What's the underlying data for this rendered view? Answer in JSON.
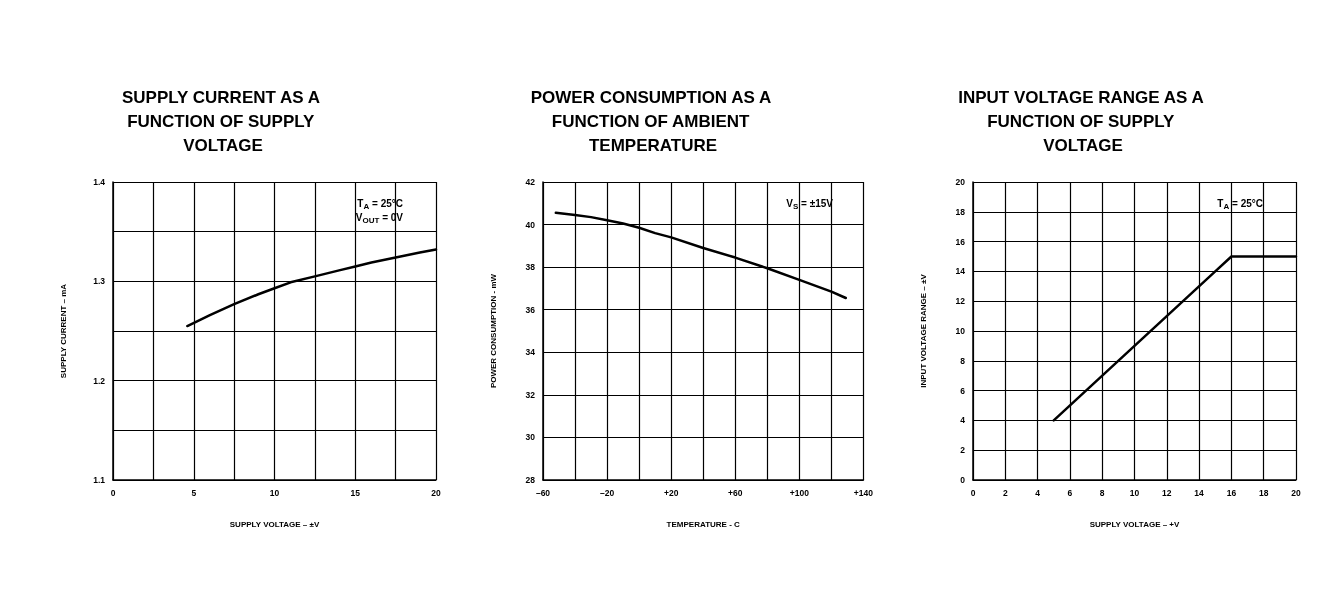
{
  "chart_data": [
    {
      "type": "line",
      "title": "SUPPLY CURRENT AS A FUNCTION OF SUPPLY VOLTAGE",
      "xlabel": "SUPPLY VOLTAGE – ±V",
      "ylabel": "SUPPLY CURRENT – mA",
      "annotations": [
        "T$_{A}$ = 25°C",
        "V$_{OUT}$ = 0V"
      ],
      "xlim": [
        0,
        20
      ],
      "xticks": [
        0,
        {
          "value": 2.5,
          "label": null
        },
        5,
        {
          "value": 7.5,
          "label": null
        },
        10,
        {
          "value": 12.5,
          "label": null
        },
        15,
        {
          "value": 17.5,
          "label": null
        },
        20
      ],
      "ylim": [
        1.1,
        1.4
      ],
      "yticks": [
        1.1,
        {
          "value": 1.15,
          "label": null
        },
        1.2,
        {
          "value": 1.25,
          "label": null
        },
        1.3,
        {
          "value": 1.35,
          "label": null
        },
        1.4
      ],
      "grid": true,
      "marker": "none",
      "line_style": "solid",
      "series": [
        {
          "color": "#000000",
          "x": [
            4.6,
            6,
            7.5,
            9,
            10,
            11,
            12.5,
            14,
            15,
            16,
            17.5,
            19,
            20
          ],
          "values": [
            1.255,
            1.266,
            1.277,
            1.287,
            1.293,
            1.299,
            1.305,
            1.311,
            1.315,
            1.319,
            1.324,
            1.329,
            1.332
          ]
        }
      ]
    },
    {
      "type": "line",
      "title": "POWER CONSUMPTION AS A FUNCTION OF AMBIENT TEMPERATURE",
      "xlabel": "TEMPERATURE - C",
      "ylabel": "POWER CONSUMPTION - mW",
      "annotations": [
        "V$_{S}$ = ±15V"
      ],
      "xlim": [
        -60,
        140
      ],
      "xticks": [
        {
          "value": -60,
          "label": "–60"
        },
        {
          "value": -40,
          "label": null
        },
        {
          "value": -20,
          "label": "–20"
        },
        {
          "value": 0,
          "label": null
        },
        {
          "value": 20,
          "label": "+20"
        },
        {
          "value": 40,
          "label": null
        },
        {
          "value": 60,
          "label": "+60"
        },
        {
          "value": 80,
          "label": null
        },
        {
          "value": 100,
          "label": "+100"
        },
        {
          "value": 120,
          "label": null
        },
        {
          "value": 140,
          "label": "+140"
        }
      ],
      "ylim": [
        28,
        42
      ],
      "yticks": [
        28,
        30,
        32,
        34,
        36,
        38,
        40,
        42
      ],
      "grid": true,
      "marker": "none",
      "line_style": "solid",
      "series": [
        {
          "color": "#000000",
          "x": [
            -52,
            -40,
            -30,
            -20,
            -10,
            0,
            10,
            20,
            40,
            60,
            80,
            100,
            120,
            129
          ],
          "values": [
            40.55,
            40.45,
            40.35,
            40.2,
            40.05,
            39.85,
            39.6,
            39.4,
            38.9,
            38.45,
            37.95,
            37.4,
            36.85,
            36.55
          ]
        }
      ]
    },
    {
      "type": "line",
      "title": "INPUT VOLTAGE RANGE AS A FUNCTION OF SUPPLY VOLTAGE",
      "xlabel": "SUPPLY VOLTAGE – +V",
      "ylabel": "INPUT VOLTAGE RANGE – ±V",
      "annotations": [
        "T$_{A}$ = 25°C"
      ],
      "xlim": [
        0,
        20
      ],
      "xticks": [
        0,
        2,
        4,
        6,
        8,
        10,
        12,
        14,
        16,
        18,
        20
      ],
      "ylim": [
        0,
        20
      ],
      "yticks": [
        0,
        2,
        4,
        6,
        8,
        10,
        12,
        14,
        16,
        18,
        20
      ],
      "grid": true,
      "marker": "none",
      "line_style": "solid",
      "series": [
        {
          "color": "#000000",
          "x": [
            5,
            15,
            16,
            20
          ],
          "values": [
            4,
            14,
            15,
            15
          ]
        }
      ]
    }
  ]
}
